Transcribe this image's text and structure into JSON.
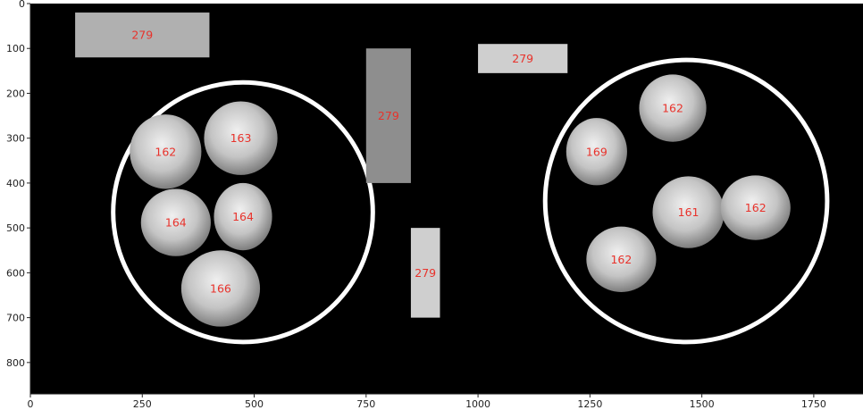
{
  "figure": {
    "x_range": [
      0,
      1860
    ],
    "y_range": [
      0,
      870
    ],
    "x_ticks": [
      0,
      250,
      500,
      750,
      1000,
      1250,
      1500,
      1750
    ],
    "y_ticks": [
      0,
      100,
      200,
      300,
      400,
      500,
      600,
      700,
      800
    ],
    "colors": {
      "background": "#000000",
      "ring": "#ffffff",
      "label": "#e8322b",
      "rect_light": "#cfcfcf",
      "rect_mid": "#b0b0b0",
      "rect_dark": "#8e8e8e",
      "object": "#bdbdbd"
    }
  },
  "rectangles": [
    {
      "name": "rect-top-left",
      "label": "279",
      "x0": 100,
      "y0": 20,
      "x1": 400,
      "y1": 120,
      "shade": "mid"
    },
    {
      "name": "rect-center-tall",
      "label": "279",
      "x0": 750,
      "y0": 100,
      "x1": 850,
      "y1": 400,
      "shade": "dark"
    },
    {
      "name": "rect-top-right",
      "label": "279",
      "x0": 1000,
      "y0": 90,
      "x1": 1200,
      "y1": 155,
      "shade": "light"
    },
    {
      "name": "rect-center-bottom",
      "label": "279",
      "x0": 850,
      "y0": 500,
      "x1": 915,
      "y1": 700,
      "shade": "light"
    }
  ],
  "rings": [
    {
      "name": "left-ring",
      "cx": 475,
      "cy": 465,
      "r": 290
    },
    {
      "name": "right-ring",
      "cx": 1465,
      "cy": 440,
      "r": 315
    }
  ],
  "objects": [
    {
      "name": "left-object-162",
      "label": "162",
      "cx": 302,
      "cy": 330,
      "rx": 80,
      "ry": 83
    },
    {
      "name": "left-object-163",
      "label": "163",
      "cx": 470,
      "cy": 300,
      "rx": 82,
      "ry": 82
    },
    {
      "name": "left-object-164a",
      "label": "164",
      "cx": 325,
      "cy": 488,
      "rx": 78,
      "ry": 75
    },
    {
      "name": "left-object-164b",
      "label": "164",
      "cx": 475,
      "cy": 475,
      "rx": 65,
      "ry": 75
    },
    {
      "name": "left-object-166",
      "label": "166",
      "cx": 425,
      "cy": 635,
      "rx": 88,
      "ry": 85
    },
    {
      "name": "right-object-162-top",
      "label": "162",
      "cx": 1435,
      "cy": 233,
      "rx": 75,
      "ry": 75
    },
    {
      "name": "right-object-169",
      "label": "169",
      "cx": 1265,
      "cy": 330,
      "rx": 68,
      "ry": 75
    },
    {
      "name": "right-object-161",
      "label": "161",
      "cx": 1470,
      "cy": 465,
      "rx": 80,
      "ry": 80
    },
    {
      "name": "right-object-162-right",
      "label": "162",
      "cx": 1620,
      "cy": 455,
      "rx": 78,
      "ry": 72
    },
    {
      "name": "right-object-162-bottom",
      "label": "162",
      "cx": 1320,
      "cy": 570,
      "rx": 78,
      "ry": 73
    }
  ]
}
